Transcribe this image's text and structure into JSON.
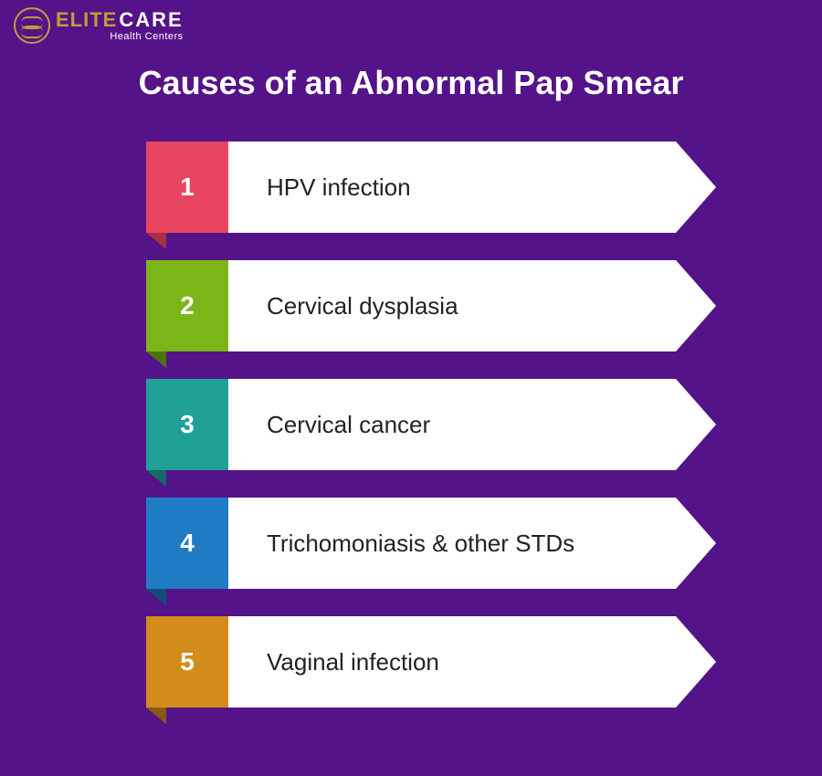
{
  "background_color": "#541388",
  "logo": {
    "icon_color": "#c49a3a",
    "text1": "ELITE",
    "text1_color": "#c49a3a",
    "text2": "CARE",
    "text2_color": "#ffffff",
    "sub": "Health Centers",
    "sub_color": "#ffffff",
    "main_fontsize": 22
  },
  "title": {
    "text": "Causes of an Abnormal Pap Smear",
    "color": "#ffffff",
    "fontsize": 36,
    "fontweight": 800
  },
  "list": {
    "item_height": 100,
    "item_gap": 30,
    "number_box_width": 90,
    "arrow_width": 44,
    "bar_color": "#ffffff",
    "text_color": "#222222",
    "text_fontsize": 26,
    "number_fontsize": 28,
    "number_color": "#ffffff",
    "items": [
      {
        "n": "1",
        "label": "HPV infection",
        "color": "#e94560",
        "fold_color": "#a82e43"
      },
      {
        "n": "2",
        "label": "Cervical dysplasia",
        "color": "#7cb518",
        "fold_color": "#4d730e"
      },
      {
        "n": "3",
        "label": "Cervical cancer",
        "color": "#1fa198",
        "fold_color": "#116b64"
      },
      {
        "n": "4",
        "label": "Trichomoniasis & other STDs",
        "color": "#1f7cc4",
        "fold_color": "#124d7a"
      },
      {
        "n": "5",
        "label": "Vaginal infection",
        "color": "#d38b1a",
        "fold_color": "#8a5a10"
      }
    ]
  }
}
